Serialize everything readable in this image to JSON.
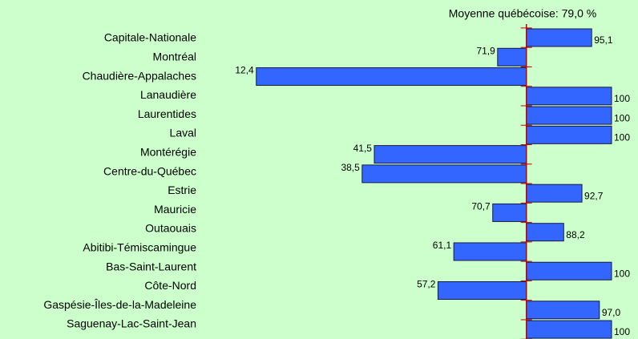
{
  "chart_data": {
    "type": "bar",
    "orientation": "horizontal",
    "annotation": "Moyenne québécoise: 79,0 %",
    "baseline": 79,
    "baseline_color": "#c00000",
    "categories": [
      "Capitale-Nationale",
      "Montréal",
      "Chaudière-Appalaches",
      "Lanaudière",
      "Laurentides",
      "Laval",
      "Montérégie",
      "Centre-du-Québec",
      "Estrie",
      "Mauricie",
      "Outaouais",
      "Abitibi-Témiscamingue",
      "Bas-Saint-Laurent",
      "Côte-Nord",
      "Gaspésie-Îles-de-la-Madeleine",
      "Saguenay-Lac-Saint-Jean"
    ],
    "values": [
      95.1,
      71.9,
      12.4,
      100,
      100,
      100,
      41.5,
      38.5,
      92.7,
      70.7,
      88.2,
      61.1,
      100,
      57.2,
      97.0,
      100
    ],
    "value_labels": [
      "95,1",
      "71,9",
      "12,4",
      "100",
      "100",
      "100",
      "41,5",
      "38,5",
      "92,7",
      "70,7",
      "88,2",
      "61,1",
      "100",
      "57,2",
      "97,0",
      "100"
    ],
    "xlim": [
      0,
      100
    ],
    "color": "#3366ff"
  }
}
